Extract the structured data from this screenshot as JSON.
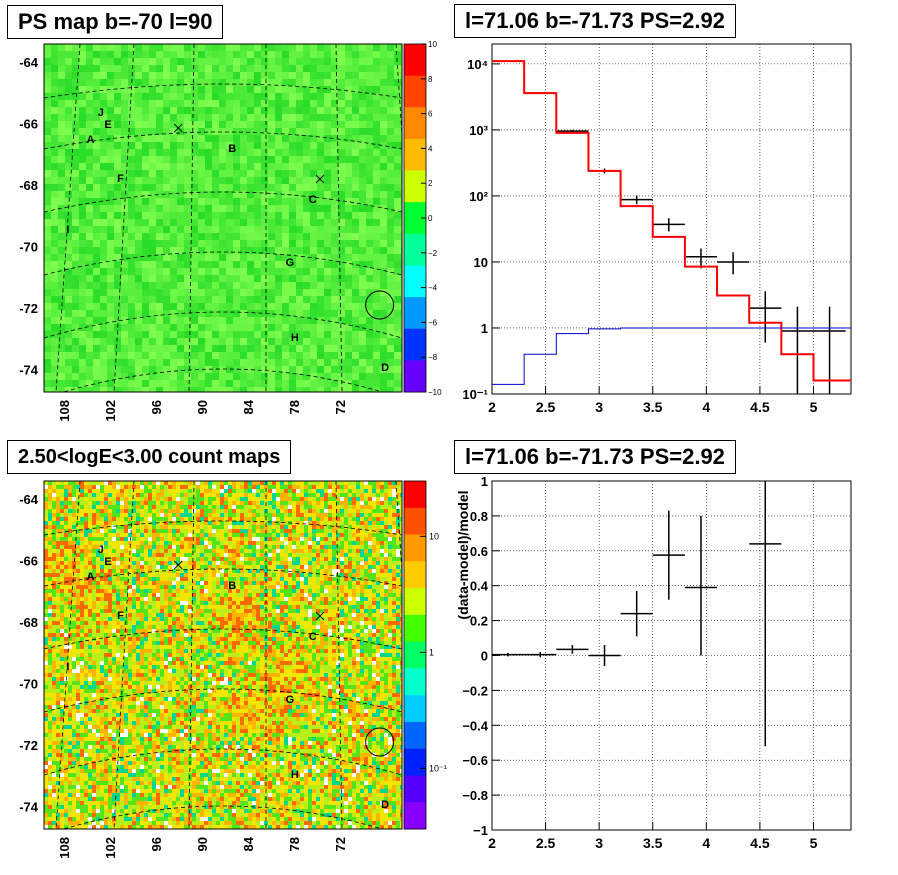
{
  "panels": {
    "ps_map_title": "PS map b=-70 l=90",
    "count_map_title": "2.50<logE<3.00 count maps",
    "spectrum_title": "l=71.06 b=-71.73 PS=2.92",
    "residual_title": "l=71.06 b=-71.73 PS=2.92"
  },
  "maps": {
    "lat_ticks": [
      "-64",
      "-66",
      "-68",
      "-70",
      "-72",
      "-74"
    ],
    "lon_ticks": [
      "108",
      "102",
      "96",
      "90",
      "84",
      "78",
      "72"
    ],
    "source_labels": [
      {
        "text": "J",
        "lon": 106.8,
        "lat": -65.5
      },
      {
        "text": "E",
        "lon": 105.9,
        "lat": -65.9
      },
      {
        "text": "A",
        "lon": 108.3,
        "lat": -66.4
      },
      {
        "text": "B",
        "lon": 89.3,
        "lat": -66.7
      },
      {
        "text": "F",
        "lon": 104.2,
        "lat": -67.7
      },
      {
        "text": "C",
        "lon": 78.5,
        "lat": -68.4
      },
      {
        "text": "I",
        "lon": 111.0,
        "lat": -69.4
      },
      {
        "text": "G",
        "lon": 81.6,
        "lat": -70.5
      },
      {
        "text": "H",
        "lon": 80.9,
        "lat": -73.0
      },
      {
        "text": "D",
        "lon": 68.8,
        "lat": -74.0
      }
    ],
    "cross_markers": [
      {
        "lon": 96.0,
        "lat": -65.9
      },
      {
        "lon": 77.0,
        "lat": -67.6
      }
    ],
    "circle_marker": {
      "lon": 69.0,
      "lat": -71.8
    },
    "ps_colorbar": {
      "range": [
        -10,
        10
      ],
      "ticks": [
        "10",
        "8",
        "6",
        "4",
        "2",
        "0",
        "−2",
        "−4",
        "−6",
        "−8",
        "−10"
      ],
      "colors": [
        "#ff0000",
        "#ff4400",
        "#ff8800",
        "#ffbb00",
        "#ccff00",
        "#00ff33",
        "#00ff99",
        "#00ffff",
        "#0099ff",
        "#0033ff",
        "#6600ff"
      ]
    },
    "count_colorbar": {
      "range": [
        0.03,
        30
      ],
      "scale": "log",
      "ticks": [
        "10",
        "1",
        "10⁻¹"
      ],
      "tick_values": [
        10,
        1,
        0.1
      ]
    }
  },
  "chart_data": [
    {
      "type": "line",
      "title": "l=71.06 b=-71.73 PS=2.92",
      "xlabel": "",
      "ylabel": "",
      "yscale": "log",
      "xlim": [
        2,
        5.35
      ],
      "ylim": [
        0.1,
        20000
      ],
      "x_ticks": [
        "2",
        "2.5",
        "3",
        "3.5",
        "4",
        "4.5",
        "5"
      ],
      "y_ticks": [
        "10⁻¹",
        "1",
        "10",
        "10²",
        "10³",
        "10⁴"
      ],
      "y_tick_values": [
        0.1,
        1,
        10,
        100,
        1000,
        10000
      ],
      "grid": true,
      "series": [
        {
          "style": "data-points",
          "color": "#000000",
          "points": [
            {
              "x": 2.15,
              "xerr": 0.15,
              "y": 11000,
              "ylo": 10800,
              "yhi": 11200
            },
            {
              "x": 2.45,
              "xerr": 0.15,
              "y": 3600,
              "ylo": 3500,
              "yhi": 3700
            },
            {
              "x": 2.75,
              "xerr": 0.15,
              "y": 960,
              "ylo": 920,
              "yhi": 1000
            },
            {
              "x": 3.05,
              "xerr": 0.15,
              "y": 240,
              "ylo": 220,
              "yhi": 260
            },
            {
              "x": 3.35,
              "xerr": 0.15,
              "y": 88,
              "ylo": 75,
              "yhi": 102
            },
            {
              "x": 3.65,
              "xerr": 0.15,
              "y": 37,
              "ylo": 29,
              "yhi": 46
            },
            {
              "x": 3.95,
              "xerr": 0.15,
              "y": 12,
              "ylo": 8,
              "yhi": 16
            },
            {
              "x": 4.25,
              "xerr": 0.15,
              "y": 10,
              "ylo": 6.5,
              "yhi": 14
            },
            {
              "x": 4.55,
              "xerr": 0.15,
              "y": 2,
              "ylo": 0.6,
              "yhi": 3.6
            },
            {
              "x": 4.85,
              "xerr": 0.15,
              "y": 0.9,
              "ylo": 0.1,
              "yhi": 2.1
            },
            {
              "x": 5.15,
              "xerr": 0.15,
              "y": 0.9,
              "ylo": 0.1,
              "yhi": 2.1
            }
          ]
        },
        {
          "style": "step",
          "color": "#ff0000",
          "edges": [
            2.0,
            2.3,
            2.6,
            2.9,
            3.2,
            3.5,
            3.8,
            4.1,
            4.4,
            4.7,
            5.0,
            5.35
          ],
          "values": [
            11000,
            3600,
            900,
            240,
            70,
            24,
            8.5,
            3.1,
            1.2,
            0.4,
            0.16
          ]
        },
        {
          "style": "step",
          "color": "#0000cc",
          "edges": [
            2.0,
            2.3,
            2.6,
            2.9,
            3.2,
            3.5,
            3.8,
            4.1,
            4.4,
            4.7,
            5.0,
            5.35
          ],
          "values": [
            0.14,
            0.4,
            0.82,
            0.97,
            1.0,
            1.0,
            1.0,
            1.0,
            1.0,
            1.0,
            1.0
          ]
        }
      ]
    },
    {
      "type": "scatter",
      "title": "l=71.06 b=-71.73 PS=2.92",
      "xlabel": "",
      "ylabel": "(data-model)/model",
      "xlim": [
        2,
        5.35
      ],
      "ylim": [
        -1,
        1
      ],
      "x_ticks": [
        "2",
        "2.5",
        "3",
        "3.5",
        "4",
        "4.5",
        "5"
      ],
      "y_ticks": [
        "−1",
        "−0.8",
        "−0.6",
        "−0.4",
        "−0.2",
        "0",
        "0.2",
        "0.4",
        "0.6",
        "0.8",
        "1"
      ],
      "grid": true,
      "points": [
        {
          "x": 2.15,
          "xerr": 0.15,
          "y": 0.005,
          "ylo": -0.005,
          "yhi": 0.015
        },
        {
          "x": 2.45,
          "xerr": 0.15,
          "y": 0.005,
          "ylo": -0.01,
          "yhi": 0.02
        },
        {
          "x": 2.75,
          "xerr": 0.15,
          "y": 0.035,
          "ylo": 0.01,
          "yhi": 0.06
        },
        {
          "x": 3.05,
          "xerr": 0.15,
          "y": 0.0,
          "ylo": -0.06,
          "yhi": 0.06
        },
        {
          "x": 3.35,
          "xerr": 0.15,
          "y": 0.24,
          "ylo": 0.11,
          "yhi": 0.37
        },
        {
          "x": 3.65,
          "xerr": 0.15,
          "y": 0.575,
          "ylo": 0.32,
          "yhi": 0.83
        },
        {
          "x": 3.95,
          "xerr": 0.15,
          "y": 0.39,
          "ylo": 0.0,
          "yhi": 0.8
        },
        {
          "x": 4.55,
          "xerr": 0.15,
          "y": 0.64,
          "ylo": -0.52,
          "yhi": 1.0
        }
      ]
    }
  ]
}
